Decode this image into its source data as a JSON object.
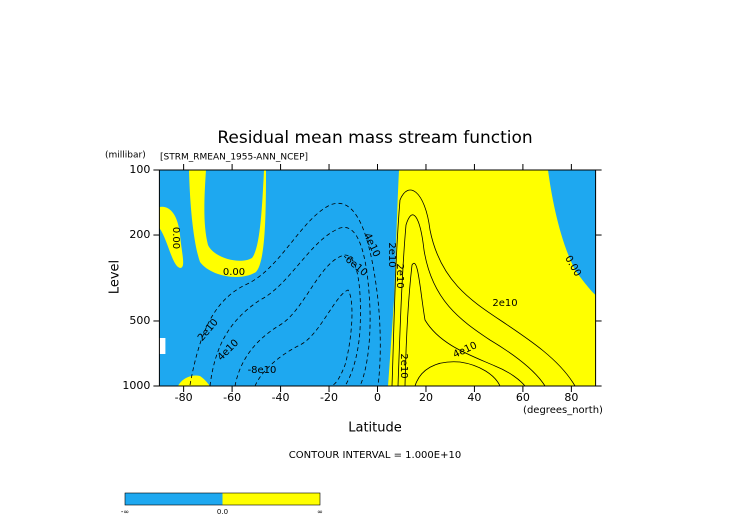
{
  "chart_data": {
    "type": "contour",
    "title": "Residual mean mass stream function",
    "subtitle": "[STRM_RMEAN_1955-ANN_NCEP]",
    "x_label": "Latitude",
    "x_units": "(degrees_north)",
    "y_label": "Level",
    "y_units": "(millibar)",
    "xlim": [
      -90,
      90
    ],
    "ylim": [
      1000,
      100
    ],
    "y_scale": "log",
    "xticks": [
      -80,
      -60,
      -40,
      -20,
      0,
      20,
      40,
      60,
      80
    ],
    "yticks": [
      100,
      200,
      500,
      1000
    ],
    "contour_interval_label": "CONTOUR INTERVAL = 1.000E+10",
    "contour_labels": [
      "0.00",
      "0.00",
      "0.00",
      "2e10",
      "4e10",
      "-8e10",
      "-6e10",
      "4e10",
      "2e10",
      "2e10",
      "2e10",
      "4e10",
      "2e10"
    ],
    "colorbar": {
      "labels": [
        "-∞",
        "0.0",
        "∞"
      ],
      "colors": [
        "#1ea8f0",
        "#ffff00"
      ]
    }
  }
}
